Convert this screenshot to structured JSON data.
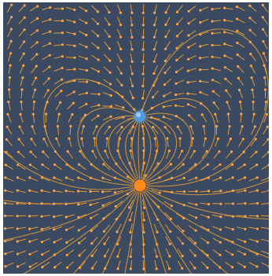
{
  "diagram": {
    "kind": "electric field lines with vector arrows",
    "charges": [
      {
        "name": "positive-charge",
        "sign": "positive",
        "color": "#ff8a1c",
        "label": ""
      },
      {
        "name": "negative-charge",
        "sign": "negative",
        "color": "#4e9be0",
        "label": ""
      }
    ],
    "colors": {
      "background": "#3b4a61",
      "field_line": "#d8963a",
      "arrow": "#e39a33",
      "arrow_head": "#f7a34a"
    }
  }
}
